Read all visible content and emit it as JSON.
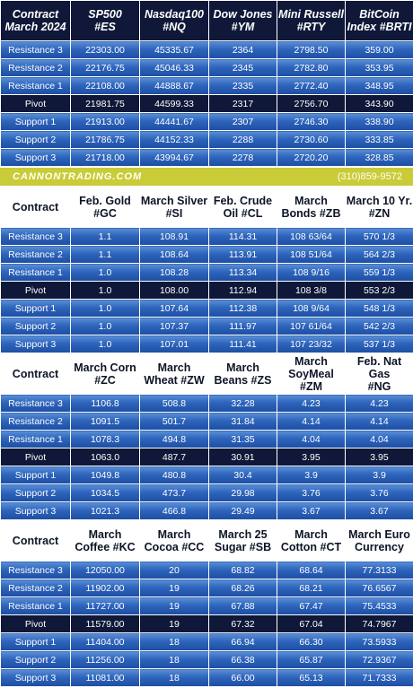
{
  "sections": [
    {
      "header": {
        "contract": "Contract\nMarch 2024",
        "cols": [
          "SP500\n#ES",
          "Nasdaq100\n#NQ",
          "Dow Jones\n#YM",
          "Mini Russell\n#RTY",
          "BitCoin\nIndex #BRTI"
        ]
      },
      "rows": [
        {
          "label": "Resistance 3",
          "values": [
            "22303.00",
            "45335.67",
            "2364",
            "2798.50",
            "359.00"
          ]
        },
        {
          "label": "Resistance 2",
          "values": [
            "22176.75",
            "45046.33",
            "2345",
            "2782.80",
            "353.95"
          ]
        },
        {
          "label": "Resistance 1",
          "values": [
            "22108.00",
            "44888.67",
            "2335",
            "2772.40",
            "348.95"
          ]
        },
        {
          "label": "Pivot",
          "values": [
            "21981.75",
            "44599.33",
            "2317",
            "2756.70",
            "343.90"
          ]
        },
        {
          "label": "Support 1",
          "values": [
            "21913.00",
            "44441.67",
            "2307",
            "2746.30",
            "338.90"
          ]
        },
        {
          "label": "Support 2",
          "values": [
            "21786.75",
            "44152.33",
            "2288",
            "2730.60",
            "333.85"
          ]
        },
        {
          "label": "Support 3",
          "values": [
            "21718.00",
            "43994.67",
            "2278",
            "2720.20",
            "328.85"
          ]
        }
      ]
    },
    {
      "header": {
        "contract": "Contract",
        "cols": [
          "Feb. Gold\n#GC",
          "March Silver\n#SI",
          "Feb. Crude\nOil #CL",
          "March\nBonds  #ZB",
          "March 10 Yr.\n#ZN"
        ]
      },
      "rows": [
        {
          "label": "Resistance 3",
          "values": [
            "1.1",
            "108.91",
            "114.31",
            "108 63/64",
            "570 1/3"
          ]
        },
        {
          "label": "Resistance 2",
          "values": [
            "1.1",
            "108.64",
            "113.91",
            "108 51/64",
            "564 2/3"
          ]
        },
        {
          "label": "Resistance 1",
          "values": [
            "1.0",
            "108.28",
            "113.34",
            "108  9/16",
            "559 1/3"
          ]
        },
        {
          "label": "Pivot",
          "values": [
            "1.0",
            "108.00",
            "112.94",
            "108  3/8",
            "553 2/3"
          ]
        },
        {
          "label": "Support 1",
          "values": [
            "1.0",
            "107.64",
            "112.38",
            "108  9/64",
            "548 1/3"
          ]
        },
        {
          "label": "Support 2",
          "values": [
            "1.0",
            "107.37",
            "111.97",
            "107 61/64",
            "542 2/3"
          ]
        },
        {
          "label": "Support 3",
          "values": [
            "1.0",
            "107.01",
            "111.41",
            "107 23/32",
            "537 1/3"
          ]
        }
      ]
    },
    {
      "header": {
        "contract": "Contract",
        "cols": [
          "March Corn\n#ZC",
          "March\nWheat #ZW",
          "March\nBeans #ZS",
          "March\nSoyMeal\n#ZM",
          "Feb. Nat Gas\n#NG"
        ]
      },
      "rows": [
        {
          "label": "Resistance 3",
          "values": [
            "1106.8",
            "508.8",
            "32.28",
            "4.23",
            "4.23"
          ]
        },
        {
          "label": "Resistance 2",
          "values": [
            "1091.5",
            "501.7",
            "31.84",
            "4.14",
            "4.14"
          ]
        },
        {
          "label": "Resistance 1",
          "values": [
            "1078.3",
            "494.8",
            "31.35",
            "4.04",
            "4.04"
          ]
        },
        {
          "label": "Pivot",
          "values": [
            "1063.0",
            "487.7",
            "30.91",
            "3.95",
            "3.95"
          ]
        },
        {
          "label": "Support 1",
          "values": [
            "1049.8",
            "480.8",
            "30.4",
            "3.9",
            "3.9"
          ]
        },
        {
          "label": "Support 2",
          "values": [
            "1034.5",
            "473.7",
            "29.98",
            "3.76",
            "3.76"
          ]
        },
        {
          "label": "Support 3",
          "values": [
            "1021.3",
            "466.8",
            "29.49",
            "3.67",
            "3.67"
          ]
        }
      ]
    },
    {
      "header": {
        "contract": "Contract",
        "cols": [
          "March\nCoffee #KC",
          "March\nCocoa #CC",
          "March 25\nSugar #SB",
          "March\nCotton #CT",
          "March Euro\nCurrency"
        ]
      },
      "rows": [
        {
          "label": "Resistance 3",
          "values": [
            "12050.00",
            "20",
            "68.82",
            "68.64",
            "77.3133"
          ]
        },
        {
          "label": "Resistance 2",
          "values": [
            "11902.00",
            "19",
            "68.26",
            "68.21",
            "76.6567"
          ]
        },
        {
          "label": "Resistance 1",
          "values": [
            "11727.00",
            "19",
            "67.88",
            "67.47",
            "75.4533"
          ]
        },
        {
          "label": "Pivot",
          "values": [
            "11579.00",
            "19",
            "67.32",
            "67.04",
            "74.7967"
          ]
        },
        {
          "label": "Support 1",
          "values": [
            "11404.00",
            "18",
            "66.94",
            "66.30",
            "73.5933"
          ]
        },
        {
          "label": "Support 2",
          "values": [
            "11256.00",
            "18",
            "66.38",
            "65.87",
            "72.9367"
          ]
        },
        {
          "label": "Support 3",
          "values": [
            "11081.00",
            "18",
            "66.00",
            "65.13",
            "71.7333"
          ]
        }
      ]
    }
  ],
  "banner": {
    "site": "CANNONTRADING.COM",
    "phone": "(310)859-9572"
  },
  "colors": {
    "row_blue": "#2e64bc",
    "pivot_dark": "#0f1838",
    "banner_yellow": "#c9cc38",
    "header_text": "#0c1426"
  }
}
